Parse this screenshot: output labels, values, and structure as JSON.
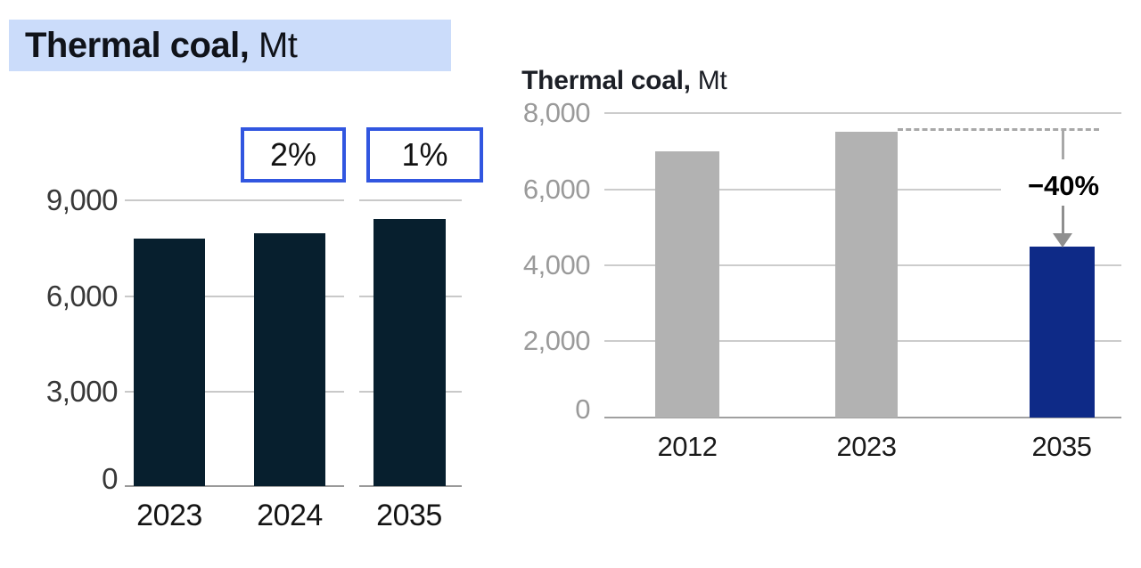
{
  "page": {
    "background": "#ffffff"
  },
  "chart_data": [
    {
      "type": "bar",
      "title": "Thermal coal, Mt",
      "title_bold": "Thermal coal,",
      "title_unit": " Mt",
      "title_highlighted": true,
      "categories": [
        "2023",
        "2024",
        "2035"
      ],
      "values": [
        7800,
        7950,
        8400
      ],
      "ylim": [
        0,
        9000
      ],
      "yticks": [
        9000,
        6000,
        3000,
        0
      ],
      "ytick_labels": [
        "9,000",
        "6,000",
        "3,000",
        "0"
      ],
      "grid": true,
      "legend": "none",
      "bar_color": "#071f2e",
      "axis_break_between": [
        "2024",
        "2035"
      ],
      "annotations": [
        {
          "label": "2%",
          "category": "2024",
          "style": "blue-outlined-box"
        },
        {
          "label": "1%",
          "category": "2035",
          "style": "blue-outlined-box"
        }
      ]
    },
    {
      "type": "bar",
      "title": "Thermal coal, Mt",
      "title_bold": "Thermal coal,",
      "title_unit": " Mt",
      "title_highlighted": false,
      "categories": [
        "2012",
        "2023",
        "2035"
      ],
      "values": [
        7000,
        7500,
        4500
      ],
      "ylim": [
        0,
        8000
      ],
      "yticks": [
        8000,
        6000,
        4000,
        2000,
        0
      ],
      "ytick_labels": [
        "8,000",
        "6,000",
        "4,000",
        "2,000",
        "0"
      ],
      "grid": true,
      "legend": "none",
      "bar_colors": [
        "#b2b2b2",
        "#b2b2b2",
        "#0e2a87"
      ],
      "annotations": [
        {
          "label": "−40%",
          "from_category": "2023",
          "to_category": "2035",
          "style": "dashed-reference-line-with-down-arrow"
        }
      ]
    }
  ],
  "colors": {
    "title_highlight": "#cbdcfa",
    "left_bar": "#071f2e",
    "right_gray_bar": "#b2b2b2",
    "right_blue_bar": "#0e2a87",
    "annotation_box_border": "#3156e0",
    "gridline": "#c9c9c9",
    "axis_baseline": "#9a9a9a",
    "dashed_line": "#a8a8a8",
    "arrow": "#8f8f8f",
    "left_ytick_text": "#383838",
    "right_ytick_text": "#9a9a9a"
  }
}
